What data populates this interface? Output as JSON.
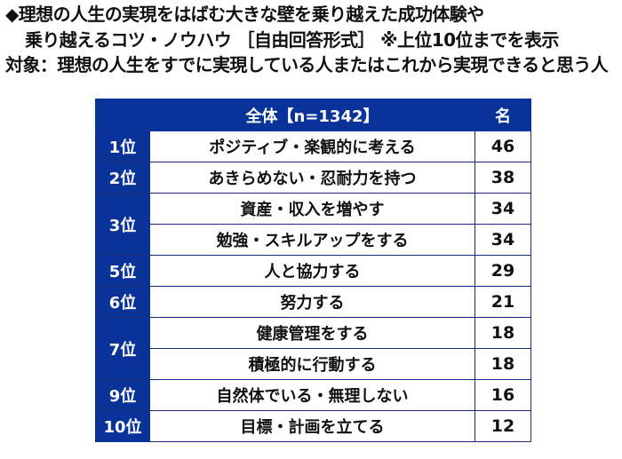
{
  "title": {
    "line1": "◆理想の人生の実現をはばむ大きな壁を乗り越えた成功体験や",
    "line2": "乗り越えるコツ・ノウハウ ［自由回答形式］ ※上位10位までを表示",
    "line3": "対象：理想の人生をすでに実現している人またはこれから実現できると思う人"
  },
  "table": {
    "header": {
      "rank": "",
      "item": "全体【n=1342】",
      "count": "名"
    },
    "rows": [
      {
        "rank": "1位",
        "item": "ポジティブ・楽観的に考える",
        "count": "46"
      },
      {
        "rank": "2位",
        "item": "あきらめない・忍耐力を持つ",
        "count": "38"
      },
      {
        "rank": "3位",
        "item": "資産・収入を増やす",
        "count": "34"
      },
      {
        "rank": "",
        "item": "勉強・スキルアップをする",
        "count": "34"
      },
      {
        "rank": "5位",
        "item": "人と協力する",
        "count": "29"
      },
      {
        "rank": "6位",
        "item": "努力する",
        "count": "21"
      },
      {
        "rank": "7位",
        "item": "健康管理をする",
        "count": "18"
      },
      {
        "rank": "",
        "item": "積極的に行動する",
        "count": "18"
      },
      {
        "rank": "9位",
        "item": "自然体でいる・無理しない",
        "count": "16"
      },
      {
        "rank": "10位",
        "item": "目標・計画を立てる",
        "count": "12"
      }
    ]
  },
  "colors": {
    "header_bg": "#0a3399",
    "border": "#1a2c7a",
    "text": "#111111"
  }
}
